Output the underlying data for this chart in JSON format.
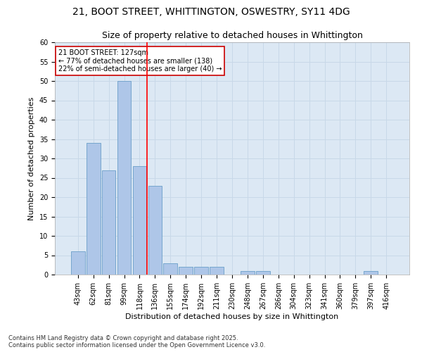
{
  "title_line1": "21, BOOT STREET, WHITTINGTON, OSWESTRY, SY11 4DG",
  "title_line2": "Size of property relative to detached houses in Whittington",
  "xlabel": "Distribution of detached houses by size in Whittington",
  "ylabel": "Number of detached properties",
  "categories": [
    "43sqm",
    "62sqm",
    "81sqm",
    "99sqm",
    "118sqm",
    "136sqm",
    "155sqm",
    "174sqm",
    "192sqm",
    "211sqm",
    "230sqm",
    "248sqm",
    "267sqm",
    "286sqm",
    "304sqm",
    "323sqm",
    "341sqm",
    "360sqm",
    "379sqm",
    "397sqm",
    "416sqm"
  ],
  "values": [
    6,
    34,
    27,
    50,
    28,
    23,
    3,
    2,
    2,
    2,
    0,
    1,
    1,
    0,
    0,
    0,
    0,
    0,
    0,
    1,
    0
  ],
  "bar_color": "#aec6e8",
  "bar_edge_color": "#6a9ec8",
  "grid_color": "#c8d8e8",
  "background_color": "#dce8f4",
  "annotation_text": "21 BOOT STREET: 127sqm\n← 77% of detached houses are smaller (138)\n22% of semi-detached houses are larger (40) →",
  "annotation_box_edge": "#cc0000",
  "redline_x": 4.5,
  "ylim": [
    0,
    60
  ],
  "yticks": [
    0,
    5,
    10,
    15,
    20,
    25,
    30,
    35,
    40,
    45,
    50,
    55,
    60
  ],
  "footnote": "Contains HM Land Registry data © Crown copyright and database right 2025.\nContains public sector information licensed under the Open Government Licence v3.0.",
  "title_fontsize": 10,
  "subtitle_fontsize": 9,
  "xlabel_fontsize": 8,
  "ylabel_fontsize": 8,
  "annotation_fontsize": 7,
  "tick_fontsize": 7,
  "footnote_fontsize": 6
}
